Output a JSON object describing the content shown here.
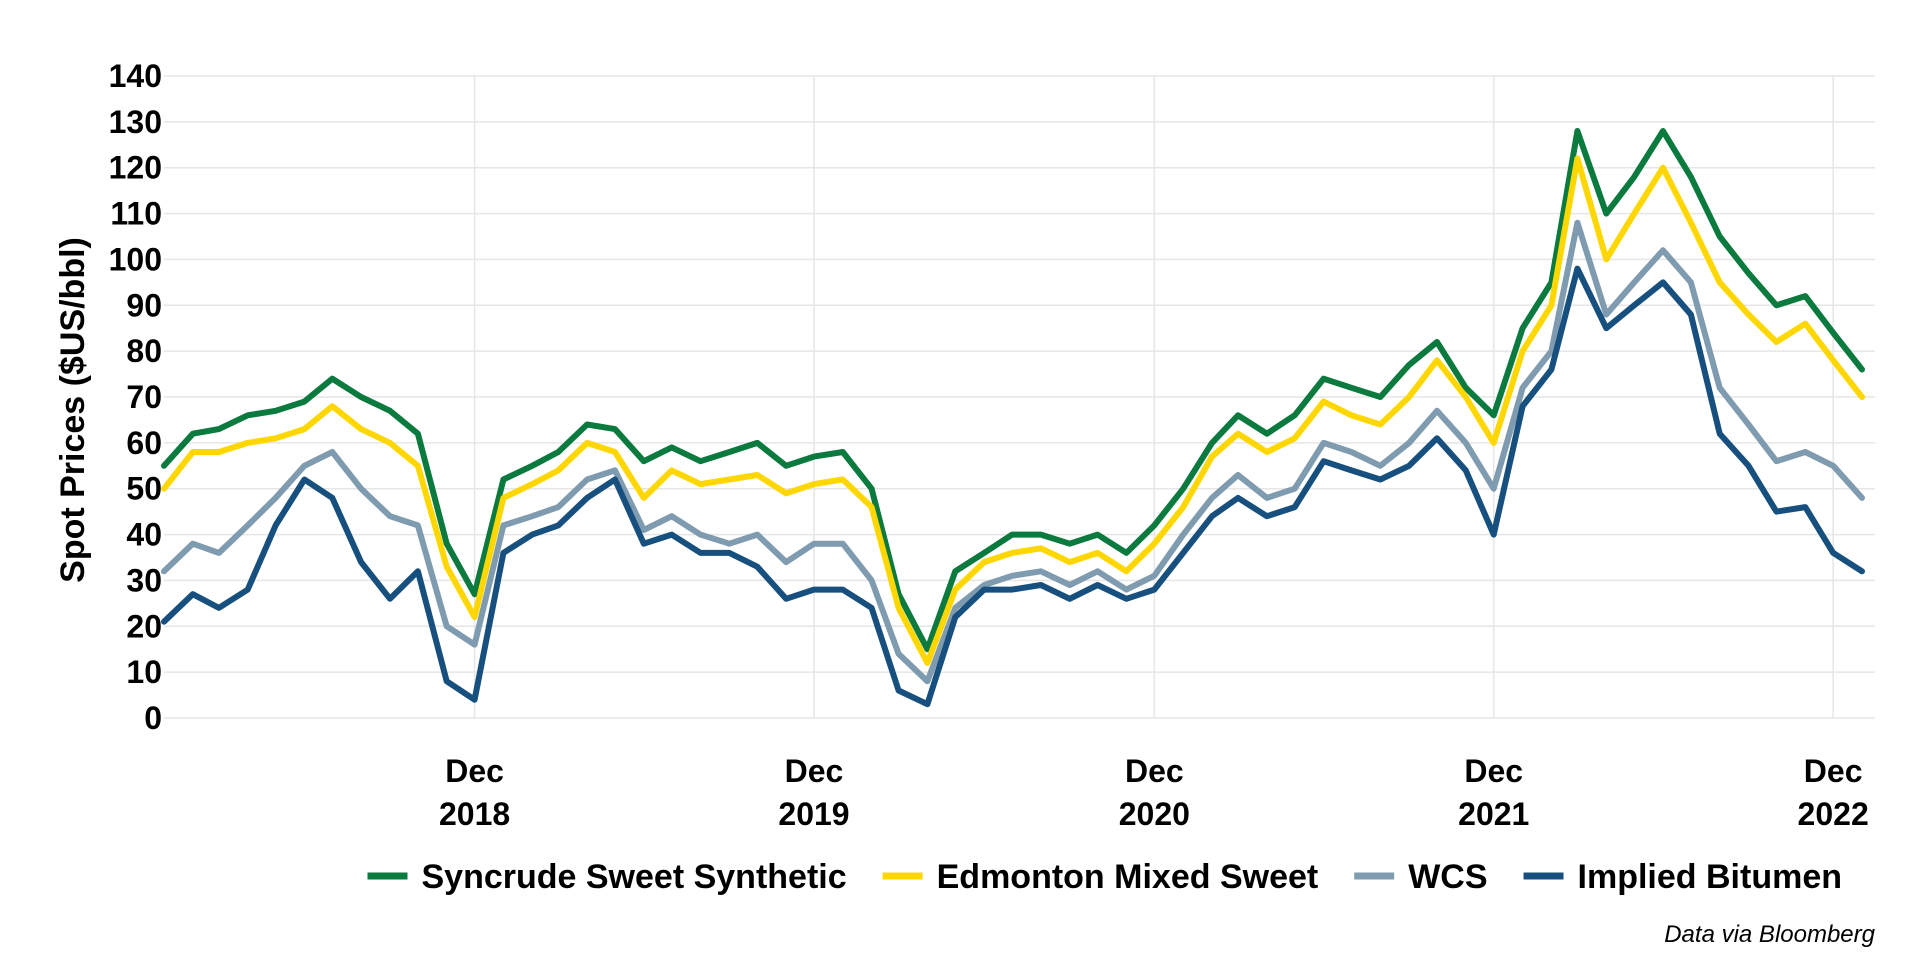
{
  "chart_data": {
    "type": "line",
    "ylabel": "Spot Prices ($US/bbl)",
    "ylim": [
      0,
      140
    ],
    "yticks": [
      0,
      10,
      20,
      30,
      40,
      50,
      60,
      70,
      80,
      90,
      100,
      110,
      120,
      130,
      140
    ],
    "xlim": [
      "2018-01-01",
      "2023-01-15"
    ],
    "xticks": [
      {
        "date": "2018-12-01",
        "line1": "Dec",
        "line2": "2018"
      },
      {
        "date": "2019-12-01",
        "line1": "Dec",
        "line2": "2019"
      },
      {
        "date": "2020-12-01",
        "line1": "Dec",
        "line2": "2020"
      },
      {
        "date": "2021-12-01",
        "line1": "Dec",
        "line2": "2021"
      },
      {
        "date": "2022-12-01",
        "line1": "Dec",
        "line2": "2022"
      }
    ],
    "grid": true,
    "legend_position": "bottom",
    "x": [
      "2018-01-01",
      "2018-02-01",
      "2018-03-01",
      "2018-04-01",
      "2018-05-01",
      "2018-06-01",
      "2018-07-01",
      "2018-08-01",
      "2018-09-01",
      "2018-10-01",
      "2018-11-01",
      "2018-12-01",
      "2019-01-01",
      "2019-02-01",
      "2019-03-01",
      "2019-04-01",
      "2019-05-01",
      "2019-06-01",
      "2019-07-01",
      "2019-08-01",
      "2019-09-01",
      "2019-10-01",
      "2019-11-01",
      "2019-12-01",
      "2020-01-01",
      "2020-02-01",
      "2020-03-01",
      "2020-04-01",
      "2020-05-01",
      "2020-06-01",
      "2020-07-01",
      "2020-08-01",
      "2020-09-01",
      "2020-10-01",
      "2020-11-01",
      "2020-12-01",
      "2021-01-01",
      "2021-02-01",
      "2021-03-01",
      "2021-04-01",
      "2021-05-01",
      "2021-06-01",
      "2021-07-01",
      "2021-08-01",
      "2021-09-01",
      "2021-10-01",
      "2021-11-01",
      "2021-12-01",
      "2022-01-01",
      "2022-02-01",
      "2022-03-01",
      "2022-04-01",
      "2022-05-01",
      "2022-06-01",
      "2022-07-01",
      "2022-08-01",
      "2022-09-01",
      "2022-10-01",
      "2022-11-01",
      "2022-12-01",
      "2023-01-01"
    ],
    "series": [
      {
        "name": "Syncrude Sweet Synthetic",
        "color": "#0b7a3e",
        "values": [
          55,
          62,
          63,
          66,
          67,
          69,
          74,
          70,
          67,
          62,
          38,
          27,
          52,
          55,
          58,
          64,
          63,
          56,
          59,
          56,
          58,
          60,
          55,
          57,
          58,
          50,
          27,
          15,
          32,
          36,
          40,
          40,
          38,
          40,
          36,
          42,
          50,
          60,
          66,
          62,
          66,
          74,
          72,
          70,
          77,
          82,
          72,
          66,
          85,
          95,
          128,
          110,
          118,
          128,
          118,
          105,
          97,
          90,
          92,
          84,
          76
        ]
      },
      {
        "name": "Edmonton Mixed Sweet",
        "color": "#ffd700",
        "values": [
          50,
          58,
          58,
          60,
          61,
          63,
          68,
          63,
          60,
          55,
          33,
          22,
          48,
          51,
          54,
          60,
          58,
          48,
          54,
          51,
          52,
          53,
          49,
          51,
          52,
          46,
          24,
          12,
          28,
          34,
          36,
          37,
          34,
          36,
          32,
          38,
          46,
          57,
          62,
          58,
          61,
          69,
          66,
          64,
          70,
          78,
          70,
          60,
          80,
          90,
          122,
          100,
          110,
          120,
          108,
          95,
          88,
          82,
          86,
          78,
          70
        ]
      },
      {
        "name": "WCS",
        "color": "#7f9bb0",
        "values": [
          32,
          38,
          36,
          42,
          48,
          55,
          58,
          50,
          44,
          42,
          20,
          16,
          42,
          44,
          46,
          52,
          54,
          41,
          44,
          40,
          38,
          40,
          34,
          38,
          38,
          30,
          14,
          8,
          24,
          29,
          31,
          32,
          29,
          32,
          28,
          31,
          40,
          48,
          53,
          48,
          50,
          60,
          58,
          55,
          60,
          67,
          60,
          50,
          72,
          80,
          108,
          88,
          95,
          102,
          95,
          72,
          64,
          56,
          58,
          55,
          48
        ]
      },
      {
        "name": "Implied Bitumen",
        "color": "#17507e",
        "values": [
          21,
          27,
          24,
          28,
          42,
          52,
          48,
          34,
          26,
          32,
          8,
          4,
          36,
          40,
          42,
          48,
          52,
          38,
          40,
          36,
          36,
          33,
          26,
          28,
          28,
          24,
          6,
          3,
          22,
          28,
          28,
          29,
          26,
          29,
          26,
          28,
          36,
          44,
          48,
          44,
          46,
          56,
          54,
          52,
          55,
          61,
          54,
          40,
          68,
          76,
          98,
          85,
          90,
          95,
          88,
          62,
          55,
          45,
          46,
          36,
          32
        ]
      }
    ]
  },
  "legend": {
    "items": [
      "Syncrude Sweet Synthetic",
      "Edmonton Mixed Sweet",
      "WCS",
      "Implied Bitumen"
    ]
  },
  "source_note": "Data via Bloomberg"
}
